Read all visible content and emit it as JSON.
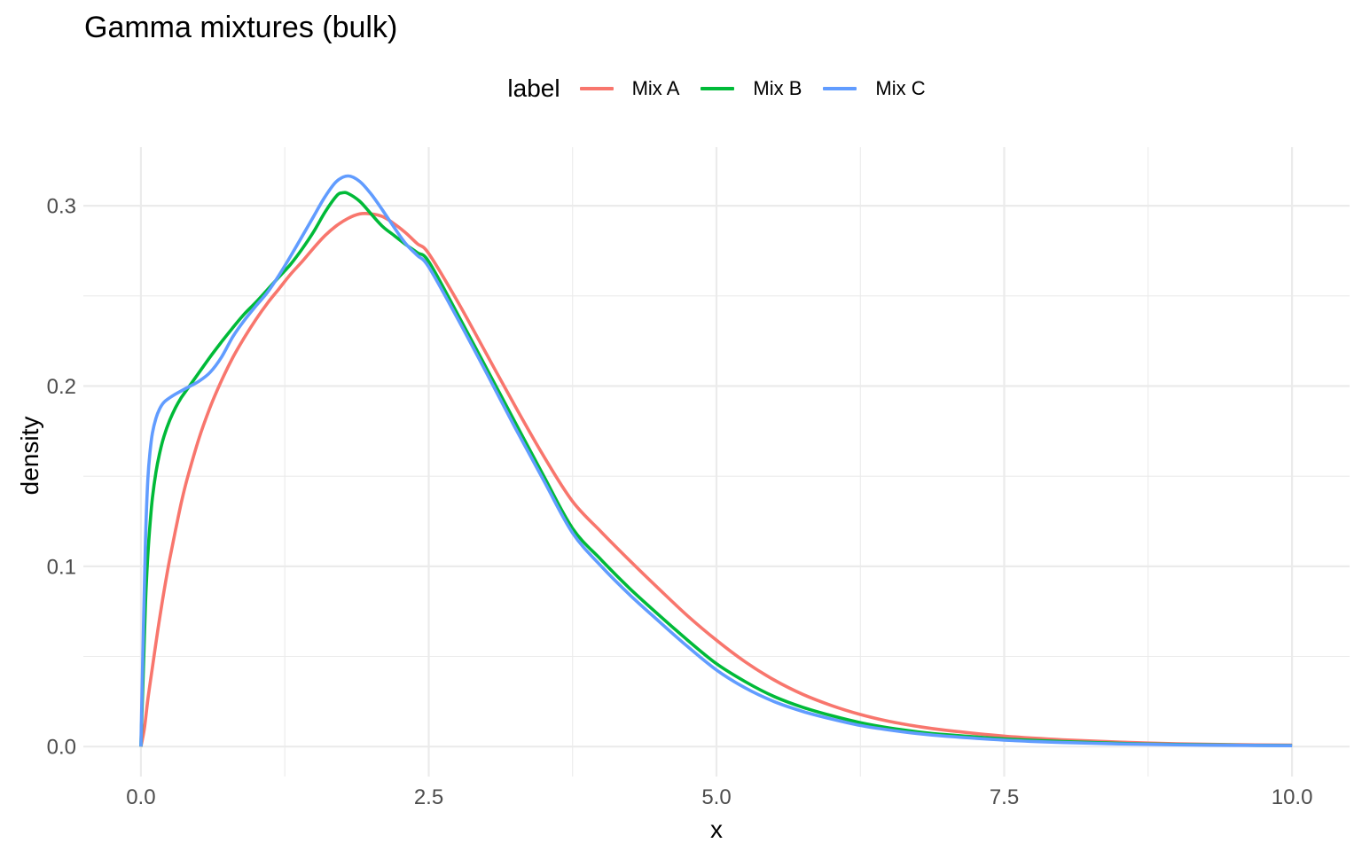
{
  "chart_data": {
    "type": "line",
    "title": "Gamma mixtures (bulk)",
    "xlabel": "x",
    "ylabel": "density",
    "legend_title": "label",
    "legend_position": "top",
    "background": "#FFFFFF",
    "grid_color": "#EBEBEB",
    "axis_text_color": "#4D4D4D",
    "title_color": "#000000",
    "grid": "major+minor",
    "xlim": [
      -0.5,
      10.5
    ],
    "ylim": [
      -0.0166,
      0.3325
    ],
    "x_breaks": {
      "values": [
        0,
        2.5,
        5,
        7.5,
        10
      ],
      "labels": [
        "0.0",
        "2.5",
        "5.0",
        "7.5",
        "10.0"
      ]
    },
    "x_minor_breaks": [
      1.25,
      3.75,
      6.25,
      8.75
    ],
    "y_breaks": {
      "values": [
        0,
        0.1,
        0.2,
        0.3
      ],
      "labels": [
        "0.0",
        "0.1",
        "0.2",
        "0.3"
      ]
    },
    "y_minor_breaks": [
      0.05,
      0.15,
      0.25
    ],
    "series": [
      {
        "name": "Mix A",
        "color": "#F8766D",
        "points": [
          [
            0,
            0
          ],
          [
            0.03,
            0.01
          ],
          [
            0.06,
            0.026
          ],
          [
            0.1,
            0.044
          ],
          [
            0.15,
            0.066
          ],
          [
            0.2,
            0.086
          ],
          [
            0.25,
            0.104
          ],
          [
            0.3,
            0.12
          ],
          [
            0.35,
            0.135
          ],
          [
            0.4,
            0.148
          ],
          [
            0.5,
            0.17
          ],
          [
            0.6,
            0.188
          ],
          [
            0.7,
            0.203
          ],
          [
            0.8,
            0.216
          ],
          [
            0.9,
            0.227
          ],
          [
            1,
            0.237
          ],
          [
            1.1,
            0.246
          ],
          [
            1.2,
            0.254
          ],
          [
            1.3,
            0.262
          ],
          [
            1.4,
            0.269
          ],
          [
            1.5,
            0.2765
          ],
          [
            1.6,
            0.2835
          ],
          [
            1.7,
            0.289
          ],
          [
            1.8,
            0.293
          ],
          [
            1.9,
            0.2955
          ],
          [
            2,
            0.2955
          ],
          [
            2.1,
            0.294
          ],
          [
            2.2,
            0.29
          ],
          [
            2.3,
            0.285
          ],
          [
            2.4,
            0.279
          ],
          [
            2.5,
            0.2735
          ],
          [
            2.75,
            0.247
          ],
          [
            3,
            0.218
          ],
          [
            3.25,
            0.189
          ],
          [
            3.5,
            0.161
          ],
          [
            3.75,
            0.136
          ],
          [
            4,
            0.119
          ],
          [
            4.25,
            0.103
          ],
          [
            4.5,
            0.0875
          ],
          [
            4.75,
            0.0725
          ],
          [
            5,
            0.059
          ],
          [
            5.25,
            0.047
          ],
          [
            5.5,
            0.037
          ],
          [
            5.75,
            0.029
          ],
          [
            6,
            0.0228
          ],
          [
            6.25,
            0.0178
          ],
          [
            6.5,
            0.014
          ],
          [
            6.75,
            0.0112
          ],
          [
            7,
            0.009
          ],
          [
            7.5,
            0.0058
          ],
          [
            8,
            0.0038
          ],
          [
            8.5,
            0.0025
          ],
          [
            9,
            0.0016
          ],
          [
            9.5,
            0.0011
          ],
          [
            10,
            0.0008
          ]
        ]
      },
      {
        "name": "Mix B",
        "color": "#00BA38",
        "points": [
          [
            0,
            0
          ],
          [
            0.02,
            0.04
          ],
          [
            0.04,
            0.08
          ],
          [
            0.06,
            0.106
          ],
          [
            0.08,
            0.124
          ],
          [
            0.1,
            0.138
          ],
          [
            0.13,
            0.152
          ],
          [
            0.16,
            0.162
          ],
          [
            0.2,
            0.172
          ],
          [
            0.25,
            0.181
          ],
          [
            0.3,
            0.188
          ],
          [
            0.35,
            0.1935
          ],
          [
            0.4,
            0.198
          ],
          [
            0.5,
            0.207
          ],
          [
            0.6,
            0.216
          ],
          [
            0.7,
            0.2245
          ],
          [
            0.8,
            0.2325
          ],
          [
            0.9,
            0.24
          ],
          [
            1,
            0.2465
          ],
          [
            1.1,
            0.2535
          ],
          [
            1.2,
            0.2605
          ],
          [
            1.3,
            0.2675
          ],
          [
            1.4,
            0.276
          ],
          [
            1.5,
            0.2855
          ],
          [
            1.6,
            0.2965
          ],
          [
            1.7,
            0.3055
          ],
          [
            1.75,
            0.3072
          ],
          [
            1.8,
            0.3068
          ],
          [
            1.9,
            0.3025
          ],
          [
            2,
            0.2955
          ],
          [
            2.1,
            0.2885
          ],
          [
            2.2,
            0.2835
          ],
          [
            2.3,
            0.2785
          ],
          [
            2.4,
            0.274
          ],
          [
            2.5,
            0.269
          ],
          [
            2.75,
            0.24
          ],
          [
            3,
            0.21
          ],
          [
            3.25,
            0.18
          ],
          [
            3.5,
            0.15
          ],
          [
            3.75,
            0.121
          ],
          [
            4,
            0.1035
          ],
          [
            4.25,
            0.0875
          ],
          [
            4.5,
            0.073
          ],
          [
            4.75,
            0.059
          ],
          [
            5,
            0.046
          ],
          [
            5.25,
            0.036
          ],
          [
            5.5,
            0.0278
          ],
          [
            5.75,
            0.0218
          ],
          [
            6,
            0.0172
          ],
          [
            6.25,
            0.0133
          ],
          [
            6.5,
            0.0104
          ],
          [
            6.75,
            0.0082
          ],
          [
            7,
            0.0066
          ],
          [
            7.5,
            0.0043
          ],
          [
            8,
            0.0028
          ],
          [
            8.5,
            0.0018
          ],
          [
            9,
            0.0012
          ],
          [
            9.5,
            0.0008
          ],
          [
            10,
            0.0006
          ]
        ]
      },
      {
        "name": "Mix C",
        "color": "#619CFF",
        "points": [
          [
            0,
            0
          ],
          [
            0.02,
            0.06
          ],
          [
            0.04,
            0.115
          ],
          [
            0.06,
            0.148
          ],
          [
            0.08,
            0.164
          ],
          [
            0.1,
            0.174
          ],
          [
            0.13,
            0.182
          ],
          [
            0.16,
            0.187
          ],
          [
            0.2,
            0.191
          ],
          [
            0.25,
            0.1935
          ],
          [
            0.3,
            0.1955
          ],
          [
            0.4,
            0.199
          ],
          [
            0.5,
            0.2025
          ],
          [
            0.6,
            0.2075
          ],
          [
            0.7,
            0.216
          ],
          [
            0.8,
            0.2275
          ],
          [
            0.9,
            0.2365
          ],
          [
            1,
            0.2445
          ],
          [
            1.1,
            0.252
          ],
          [
            1.2,
            0.2615
          ],
          [
            1.3,
            0.272
          ],
          [
            1.4,
            0.283
          ],
          [
            1.5,
            0.294
          ],
          [
            1.6,
            0.305
          ],
          [
            1.7,
            0.3135
          ],
          [
            1.8,
            0.3165
          ],
          [
            1.9,
            0.3135
          ],
          [
            2,
            0.3065
          ],
          [
            2.1,
            0.2975
          ],
          [
            2.2,
            0.288
          ],
          [
            2.3,
            0.279
          ],
          [
            2.4,
            0.2725
          ],
          [
            2.5,
            0.266
          ],
          [
            2.75,
            0.2375
          ],
          [
            3,
            0.2075
          ],
          [
            3.25,
            0.177
          ],
          [
            3.5,
            0.1475
          ],
          [
            3.75,
            0.1185
          ],
          [
            4,
            0.1
          ],
          [
            4.25,
            0.084
          ],
          [
            4.5,
            0.0695
          ],
          [
            4.75,
            0.0555
          ],
          [
            5,
            0.0425
          ],
          [
            5.25,
            0.0325
          ],
          [
            5.5,
            0.025
          ],
          [
            5.75,
            0.0195
          ],
          [
            6,
            0.0153
          ],
          [
            6.25,
            0.0117
          ],
          [
            6.5,
            0.0092
          ],
          [
            6.75,
            0.0072
          ],
          [
            7,
            0.0057
          ],
          [
            7.5,
            0.0036
          ],
          [
            8,
            0.0023
          ],
          [
            8.5,
            0.0015
          ],
          [
            9,
            0.001
          ],
          [
            9.5,
            0.0007
          ],
          [
            10,
            0.0005
          ]
        ]
      }
    ]
  }
}
